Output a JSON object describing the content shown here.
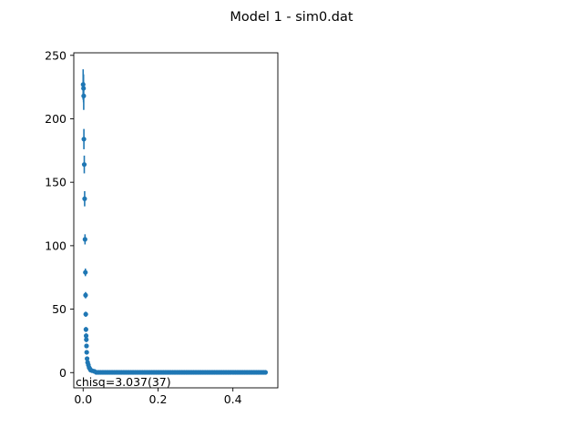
{
  "figure": {
    "title": "Model 1 - sim0.dat"
  },
  "chart_data": {
    "type": "scatter",
    "title": "Model 1 - sim0.dat",
    "xlabel": "",
    "ylabel": "",
    "xlim": [
      -0.025,
      0.52
    ],
    "ylim": [
      -12,
      252
    ],
    "xticks": [
      0.0,
      0.2,
      0.4
    ],
    "xtick_labels": [
      "0.0",
      "0.2",
      "0.4"
    ],
    "yticks": [
      0,
      50,
      100,
      150,
      200,
      250
    ],
    "ytick_labels": [
      "0",
      "50",
      "100",
      "150",
      "200",
      "250"
    ],
    "grid": false,
    "marker_color": "#1f77b4",
    "annotation": "chisq=3.037(37)",
    "points": {
      "x": [
        0.0,
        0.001,
        0.0015,
        0.002,
        0.003,
        0.004,
        0.005,
        0.006,
        0.0065,
        0.007,
        0.0075,
        0.008,
        0.0085,
        0.009,
        0.0095,
        0.0105,
        0.012,
        0.014,
        0.016,
        0.018,
        0.02,
        0.024,
        0.03
      ],
      "y": [
        227,
        224,
        218,
        184,
        164,
        137,
        105,
        79,
        61,
        46,
        34,
        29,
        26,
        21,
        16,
        11,
        8,
        6,
        4,
        3,
        2,
        1.5,
        1
      ],
      "yerr": [
        12,
        11,
        11,
        8,
        7,
        6,
        4,
        3,
        2.5,
        2,
        2,
        2,
        2,
        1.5,
        1.5,
        1,
        1,
        1,
        0.5,
        0.5,
        0.5,
        0.3,
        0.3
      ]
    },
    "tail": {
      "x_start": 0.035,
      "x_end": 0.49,
      "step": 0.004,
      "y": 0.2
    }
  }
}
